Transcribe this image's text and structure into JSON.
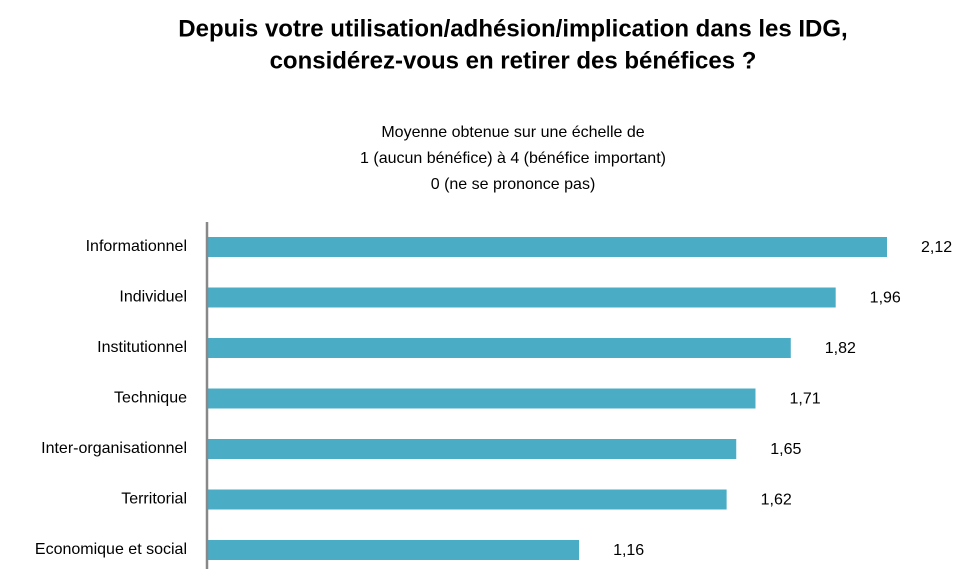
{
  "chart_data": {
    "type": "bar",
    "orientation": "horizontal",
    "title": [
      "Depuis votre utilisation/adhésion/implication dans les IDG,",
      "considérez-vous en retirer des bénéfices ?"
    ],
    "subtitle": [
      "Moyenne obtenue sur une échelle de",
      "1 (aucun bénéfice) à 4 (bénéfice important)",
      "0 (ne se prononce pas)"
    ],
    "categories": [
      "Informationnel",
      "Individuel",
      "Institutionnel",
      "Technique",
      "Inter-organisationnel",
      "Territorial",
      "Economique et social"
    ],
    "values": [
      2.12,
      1.96,
      1.82,
      1.71,
      1.65,
      1.62,
      1.16
    ],
    "value_labels": [
      "2,12",
      "1,96",
      "1,82",
      "1,71",
      "1,65",
      "1,62",
      "1,16"
    ],
    "color": "#4bacc6"
  }
}
